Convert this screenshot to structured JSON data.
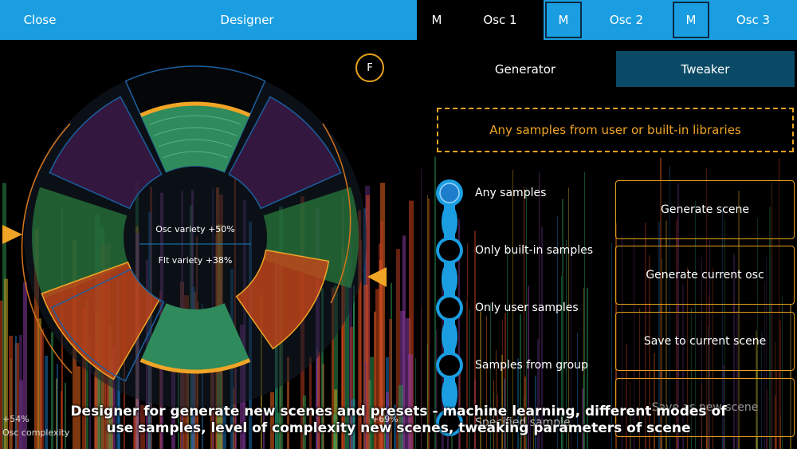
{
  "topbar": {
    "close_label": "Close",
    "title": "Designer",
    "m1": "M",
    "osc1": "Osc 1",
    "m2": "M",
    "osc2": "Osc 2",
    "m3": "M",
    "osc3": "Osc 3"
  },
  "dial": {
    "f_button": "F",
    "osc_variety": "Osc variety +50%",
    "flt_variety": "Flt variety +38%",
    "left_pct": "+54%",
    "left_label": "Osc complexity",
    "right_pct": "+69%"
  },
  "tabs": {
    "generator": "Generator",
    "tweaker": "Tweaker"
  },
  "library_notice": "Any samples from user or built-in libraries",
  "sample_modes": [
    "Any samples",
    "Only built-in samples",
    "Only user samples",
    "Samples from group",
    "Specified sample"
  ],
  "actions": {
    "generate_scene": "Generate scene",
    "generate_osc": "Generate current osc",
    "save_current": "Save to current scene",
    "save_new": "Save as new scene"
  },
  "caption_line1": "Designer for generate new scenes and presets - machine learning, different modes of",
  "caption_line2": "use samples, level of complexity new scenes, tweaking parameters of scene",
  "colors": {
    "accent_blue": "#1a9ee1",
    "orange": "#f0a526",
    "tweaker_bg": "#0b4a66"
  }
}
